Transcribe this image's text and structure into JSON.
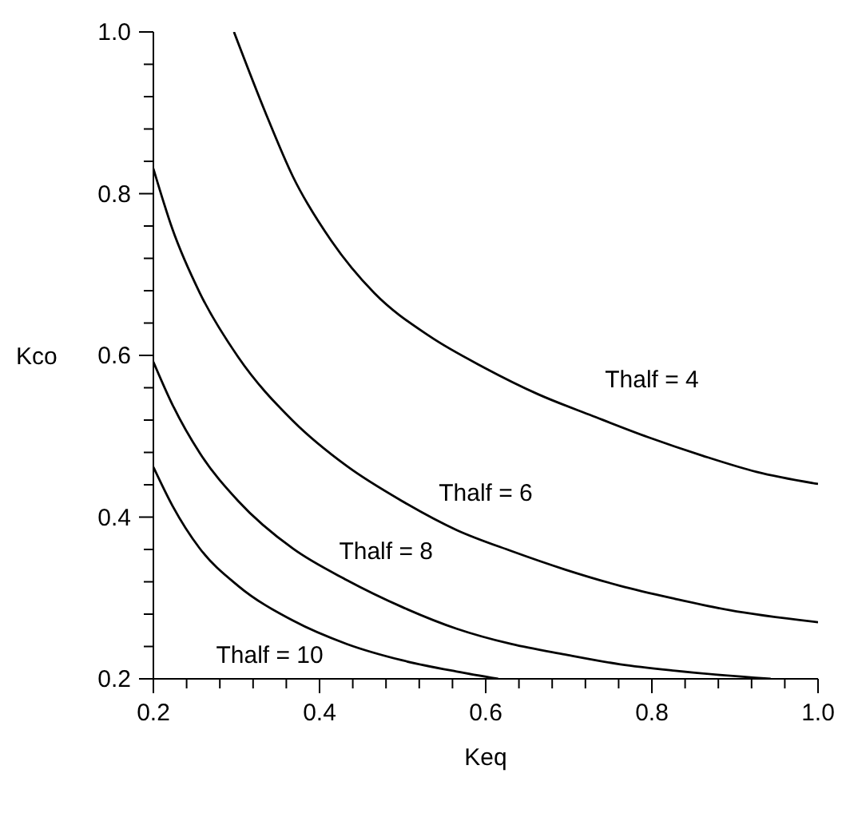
{
  "chart_data": {
    "type": "line",
    "xlabel": "Keq",
    "ylabel": "Kco",
    "xlim": [
      0.2,
      1.0
    ],
    "ylim": [
      0.2,
      1.0
    ],
    "xticks": [
      0.2,
      {
        "value": 0.24,
        "label": null
      },
      {
        "value": 0.28,
        "label": null
      },
      {
        "value": 0.32,
        "label": null
      },
      {
        "value": 0.36,
        "label": null
      },
      0.4,
      {
        "value": 0.44,
        "label": null
      },
      {
        "value": 0.48,
        "label": null
      },
      {
        "value": 0.52,
        "label": null
      },
      {
        "value": 0.56,
        "label": null
      },
      0.6,
      {
        "value": 0.64,
        "label": null
      },
      {
        "value": 0.68,
        "label": null
      },
      {
        "value": 0.72,
        "label": null
      },
      {
        "value": 0.76,
        "label": null
      },
      0.8,
      {
        "value": 0.84,
        "label": null
      },
      {
        "value": 0.88,
        "label": null
      },
      {
        "value": 0.92,
        "label": null
      },
      {
        "value": 0.96,
        "label": null
      },
      {
        "value": 1.0,
        "label": "1.0"
      }
    ],
    "yticks": [
      0.2,
      {
        "value": 0.24,
        "label": null
      },
      {
        "value": 0.28,
        "label": null
      },
      {
        "value": 0.32,
        "label": null
      },
      {
        "value": 0.36,
        "label": null
      },
      0.4,
      {
        "value": 0.44,
        "label": null
      },
      {
        "value": 0.48,
        "label": null
      },
      {
        "value": 0.52,
        "label": null
      },
      {
        "value": 0.56,
        "label": null
      },
      0.6,
      {
        "value": 0.64,
        "label": null
      },
      {
        "value": 0.68,
        "label": null
      },
      {
        "value": 0.72,
        "label": null
      },
      {
        "value": 0.76,
        "label": null
      },
      0.8,
      {
        "value": 0.84,
        "label": null
      },
      {
        "value": 0.88,
        "label": null
      },
      {
        "value": 0.92,
        "label": null
      },
      {
        "value": 0.96,
        "label": null
      },
      {
        "value": 1.0,
        "label": "1.0"
      }
    ],
    "grid": false,
    "legend": false,
    "marker": "none",
    "line_style": "solid",
    "series": [
      {
        "name": "Thalf = 4",
        "color": "#000000",
        "x": [
          0.297,
          0.335,
          0.368,
          0.414,
          0.466,
          0.532,
          0.598,
          0.663,
          0.729,
          0.795,
          0.861,
          0.926,
          1.0
        ],
        "values": [
          1.0,
          0.9,
          0.821,
          0.742,
          0.677,
          0.624,
          0.585,
          0.552,
          0.525,
          0.499,
          0.476,
          0.456,
          0.441
        ]
      },
      {
        "name": "Thalf = 6",
        "color": "#000000",
        "x": [
          0.2,
          0.223,
          0.256,
          0.302,
          0.368,
          0.433,
          0.499,
          0.565,
          0.631,
          0.696,
          0.762,
          0.828,
          0.893,
          1.0
        ],
        "values": [
          0.831,
          0.756,
          0.677,
          0.598,
          0.519,
          0.463,
          0.42,
          0.384,
          0.358,
          0.335,
          0.315,
          0.299,
          0.285,
          0.27
        ]
      },
      {
        "name": "Thalf = 8",
        "color": "#000000",
        "x": [
          0.2,
          0.223,
          0.256,
          0.302,
          0.368,
          0.433,
          0.499,
          0.565,
          0.631,
          0.696,
          0.762,
          0.828,
          0.943
        ],
        "values": [
          0.592,
          0.539,
          0.479,
          0.42,
          0.361,
          0.322,
          0.289,
          0.262,
          0.243,
          0.23,
          0.218,
          0.21,
          0.2
        ]
      },
      {
        "name": "Thalf = 10",
        "color": "#000000",
        "x": [
          0.2,
          0.223,
          0.256,
          0.302,
          0.368,
          0.433,
          0.499,
          0.565,
          0.615
        ],
        "values": [
          0.462,
          0.414,
          0.361,
          0.315,
          0.272,
          0.243,
          0.223,
          0.209,
          0.2
        ]
      }
    ]
  }
}
